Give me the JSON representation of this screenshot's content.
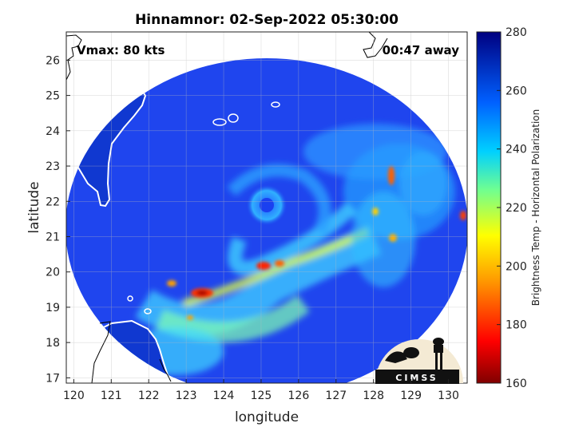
{
  "title": "Hinnamnor: 02-Sep-2022 05:30:00",
  "vmax_label": "Vmax: 80 kts",
  "time_away_label": "00:47 away",
  "x_axis": {
    "label": "longitude",
    "ticks": [
      120,
      121,
      122,
      123,
      124,
      125,
      126,
      127,
      128,
      129,
      130
    ],
    "range": [
      119.8,
      130.5
    ]
  },
  "y_axis": {
    "label": "latitude",
    "ticks": [
      17,
      18,
      19,
      20,
      21,
      22,
      23,
      24,
      25,
      26
    ],
    "range": [
      16.85,
      26.8
    ]
  },
  "colorbar": {
    "label": "Brightness Temp - Horizontal Polarization",
    "ticks": [
      160,
      180,
      200,
      220,
      240,
      260,
      280
    ],
    "range": [
      160,
      280
    ]
  },
  "logo_text": "CIMSS",
  "storm": {
    "center_lon": 125.0,
    "center_lat": 21.9
  },
  "colors": {
    "background_field": "#1a3ff0",
    "land_outline": "#ffffff",
    "coast_black": "#000000"
  }
}
